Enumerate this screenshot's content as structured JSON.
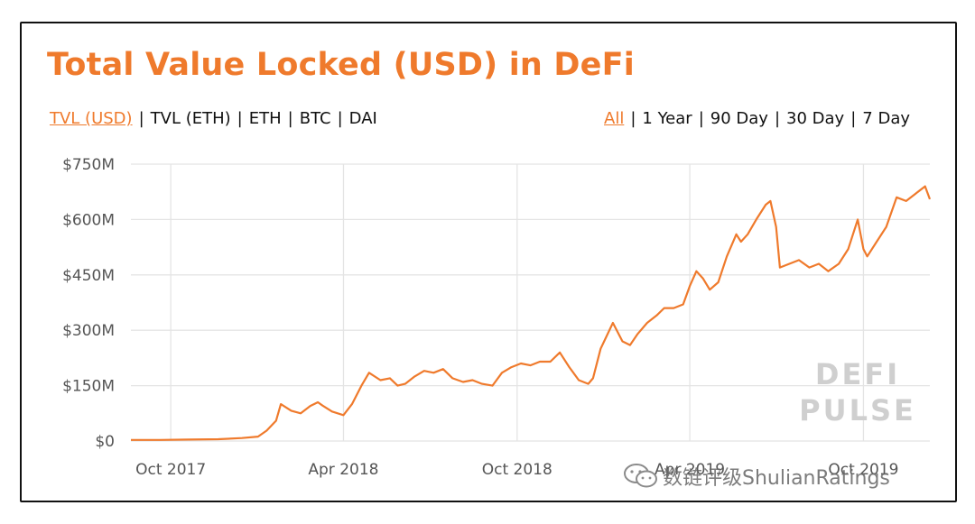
{
  "colors": {
    "accent": "#ef7a2c",
    "text": "#111111",
    "axis_text": "#555555",
    "grid": "#e4e4e4",
    "watermark": "#cfcfcf"
  },
  "title": "Total Value Locked (USD) in DeFi",
  "metric_tabs": [
    {
      "label": "TVL (USD)",
      "active": true
    },
    {
      "label": "TVL (ETH)",
      "active": false
    },
    {
      "label": "ETH",
      "active": false
    },
    {
      "label": "BTC",
      "active": false
    },
    {
      "label": "DAI",
      "active": false
    }
  ],
  "range_tabs": [
    {
      "label": "All",
      "active": true
    },
    {
      "label": "1 Year",
      "active": false
    },
    {
      "label": "90 Day",
      "active": false
    },
    {
      "label": "30 Day",
      "active": false
    },
    {
      "label": "7 Day",
      "active": false
    }
  ],
  "watermark": {
    "line1": "DEFI",
    "line2": "PULSE"
  },
  "overlay_watermark": {
    "text": "数链评级ShulianRatings",
    "icon": "wechat-icon"
  },
  "chart_data": {
    "type": "line",
    "ylim": [
      0,
      750
    ],
    "yticks": [
      {
        "value": 0,
        "label": "$0"
      },
      {
        "value": 150,
        "label": "$150M"
      },
      {
        "value": 300,
        "label": "$300M"
      },
      {
        "value": 450,
        "label": "$450M"
      },
      {
        "value": 600,
        "label": "$600M"
      },
      {
        "value": 750,
        "label": "$750M"
      }
    ],
    "xlim": [
      "2017-08-20",
      "2019-12-10"
    ],
    "xticks": [
      {
        "value": "2017-10-01",
        "label": "Oct 2017"
      },
      {
        "value": "2018-04-01",
        "label": "Apr 2018"
      },
      {
        "value": "2018-10-01",
        "label": "Oct 2018"
      },
      {
        "value": "2019-04-01",
        "label": "Apr 2019"
      },
      {
        "value": "2019-10-01",
        "label": "Oct 2019"
      }
    ],
    "grid": true,
    "series": [
      {
        "color": "#ef7a2c",
        "x": [
          "2017-08-20",
          "2017-09-20",
          "2017-10-20",
          "2017-11-20",
          "2017-12-15",
          "2018-01-01",
          "2018-01-10",
          "2018-01-20",
          "2018-01-25",
          "2018-02-05",
          "2018-02-15",
          "2018-02-25",
          "2018-03-05",
          "2018-03-10",
          "2018-03-20",
          "2018-04-01",
          "2018-04-10",
          "2018-04-20",
          "2018-04-28",
          "2018-05-10",
          "2018-05-20",
          "2018-05-28",
          "2018-06-05",
          "2018-06-15",
          "2018-06-25",
          "2018-07-05",
          "2018-07-15",
          "2018-07-25",
          "2018-08-05",
          "2018-08-15",
          "2018-08-25",
          "2018-09-05",
          "2018-09-15",
          "2018-09-25",
          "2018-10-05",
          "2018-10-15",
          "2018-10-25",
          "2018-11-05",
          "2018-11-15",
          "2018-11-25",
          "2018-12-05",
          "2018-12-15",
          "2018-12-20",
          "2018-12-28",
          "2019-01-10",
          "2019-01-20",
          "2019-01-28",
          "2019-02-05",
          "2019-02-15",
          "2019-02-25",
          "2019-03-05",
          "2019-03-15",
          "2019-03-25",
          "2019-04-01",
          "2019-04-08",
          "2019-04-15",
          "2019-04-22",
          "2019-05-01",
          "2019-05-10",
          "2019-05-20",
          "2019-05-25",
          "2019-06-01",
          "2019-06-10",
          "2019-06-20",
          "2019-06-25",
          "2019-07-01",
          "2019-07-05",
          "2019-07-15",
          "2019-07-25",
          "2019-08-05",
          "2019-08-15",
          "2019-08-25",
          "2019-09-05",
          "2019-09-15",
          "2019-09-25",
          "2019-10-01",
          "2019-10-05",
          "2019-10-15",
          "2019-10-25",
          "2019-11-05",
          "2019-11-15",
          "2019-11-25",
          "2019-12-05",
          "2019-12-10"
        ],
        "y": [
          3,
          3,
          4,
          5,
          8,
          12,
          28,
          55,
          100,
          82,
          75,
          95,
          105,
          96,
          80,
          70,
          100,
          150,
          185,
          165,
          170,
          150,
          155,
          175,
          190,
          185,
          195,
          170,
          160,
          165,
          155,
          150,
          185,
          200,
          210,
          205,
          215,
          215,
          240,
          200,
          165,
          155,
          170,
          250,
          320,
          270,
          260,
          290,
          320,
          340,
          360,
          360,
          370,
          420,
          460,
          440,
          410,
          430,
          500,
          560,
          540,
          560,
          600,
          640,
          650,
          580,
          470,
          480,
          490,
          470,
          480,
          460,
          480,
          520,
          600,
          520,
          500,
          540,
          580,
          660,
          650,
          670,
          690,
          655
        ]
      }
    ]
  }
}
